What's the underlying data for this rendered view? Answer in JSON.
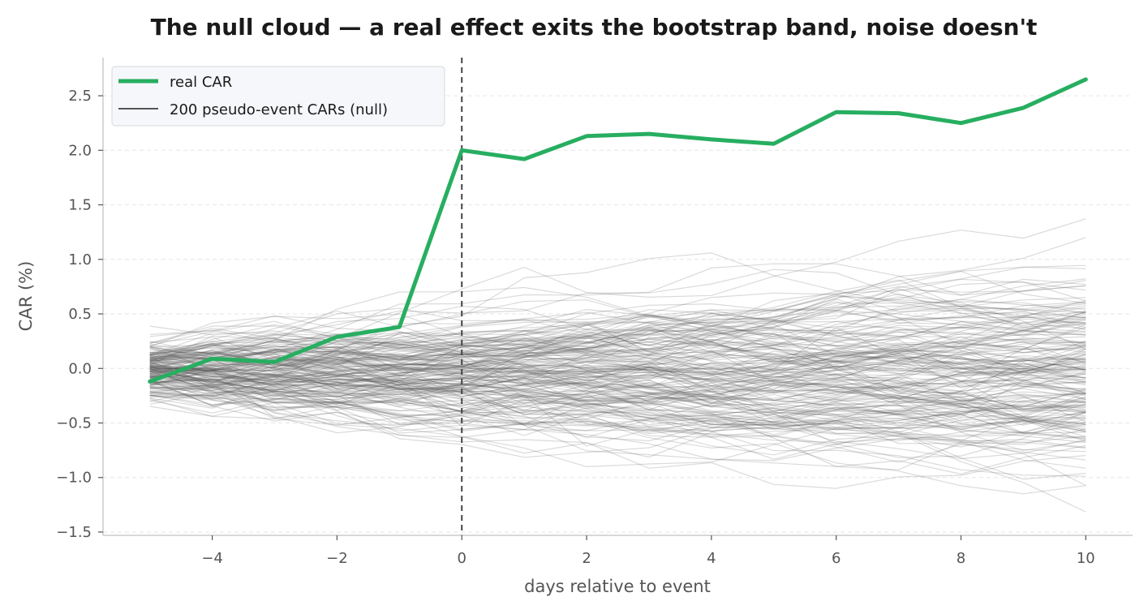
{
  "chart_data": {
    "type": "line",
    "title": "The null cloud — a real effect exits the bootstrap band, noise doesn't",
    "xlabel": "days relative to event",
    "ylabel": "CAR (%)",
    "xlim": [
      -5.75,
      10.75
    ],
    "ylim": [
      -1.53,
      2.85
    ],
    "x_ticks": [
      -4,
      -2,
      0,
      2,
      4,
      6,
      8,
      10
    ],
    "x_tick_labels": [
      "−4",
      "−2",
      "0",
      "2",
      "4",
      "6",
      "8",
      "10"
    ],
    "y_ticks": [
      -1.5,
      -1.0,
      -0.5,
      0.0,
      0.5,
      1.0,
      1.5,
      2.0,
      2.5
    ],
    "y_tick_labels": [
      "−1.5",
      "−1.0",
      "−0.5",
      "0.0",
      "0.5",
      "1.0",
      "1.5",
      "2.0",
      "2.5"
    ],
    "grid": "horizontal dashed, light",
    "legend_position": "top-left",
    "event_line_x": 0,
    "x": [
      -5,
      -4,
      -3,
      -2,
      -1,
      0,
      1,
      2,
      3,
      4,
      5,
      6,
      7,
      8,
      9,
      10
    ],
    "series": [
      {
        "name": "real CAR",
        "color": "#27ae60",
        "values": [
          -0.12,
          0.09,
          0.06,
          0.29,
          0.38,
          2.0,
          1.92,
          2.13,
          2.15,
          2.1,
          2.06,
          2.35,
          2.34,
          2.25,
          2.39,
          2.65
        ]
      }
    ],
    "null_band": {
      "name": "200 pseudo-event CARs (null)",
      "color": "#555555",
      "count": 200
    }
  },
  "legend": {
    "real_label": "real CAR",
    "null_label": "200 pseudo-event CARs (null)"
  }
}
